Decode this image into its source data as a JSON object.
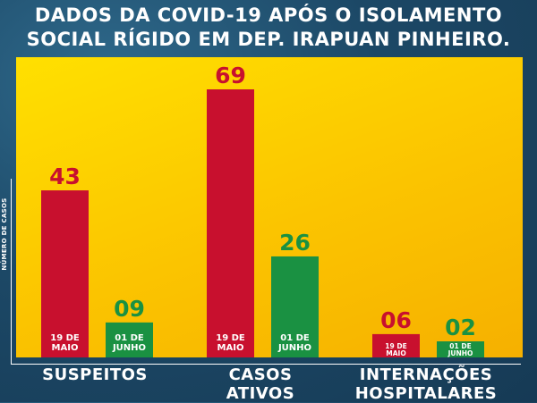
{
  "title": {
    "line1": "DADOS DA COVID-19 APÓS O ISOLAMENTO",
    "line2": "SOCIAL RÍGIDO EM DEP. IRAPUAN PINHEIRO."
  },
  "colors": {
    "series_1": "#c8102e",
    "series_2": "#1a9142",
    "panel": "#ffd400",
    "background": "#1c4866"
  },
  "chart_data": {
    "type": "bar",
    "title": "DADOS DA COVID-19 APÓS O ISOLAMENTO SOCIAL RÍGIDO EM DEP. IRAPUAN PINHEIRO.",
    "xlabel": "",
    "ylabel": "NÚMERO DE CASOS",
    "categories": [
      "SUSPEITOS",
      "CASOS ATIVOS",
      "INTERNAÇÕES HOSPITALARES"
    ],
    "category_lines": [
      [
        "SUSPEITOS"
      ],
      [
        "CASOS",
        "ATIVOS"
      ],
      [
        "INTERNAÇÕES",
        "HOSPITALARES"
      ]
    ],
    "series": [
      {
        "name": "19 DE MAIO",
        "label_lines": [
          "19 DE",
          "MAIO"
        ],
        "values": [
          43,
          69,
          6
        ],
        "value_labels": [
          "43",
          "69",
          "06"
        ],
        "color": "#c8102e"
      },
      {
        "name": "01 DE JUNHO",
        "label_lines": [
          "01 DE",
          "JUNHO"
        ],
        "values": [
          9,
          26,
          2
        ],
        "value_labels": [
          "09",
          "26",
          "02"
        ],
        "color": "#1a9142"
      }
    ],
    "ylim": [
      0,
      69
    ],
    "grid": false,
    "legend": "none"
  }
}
